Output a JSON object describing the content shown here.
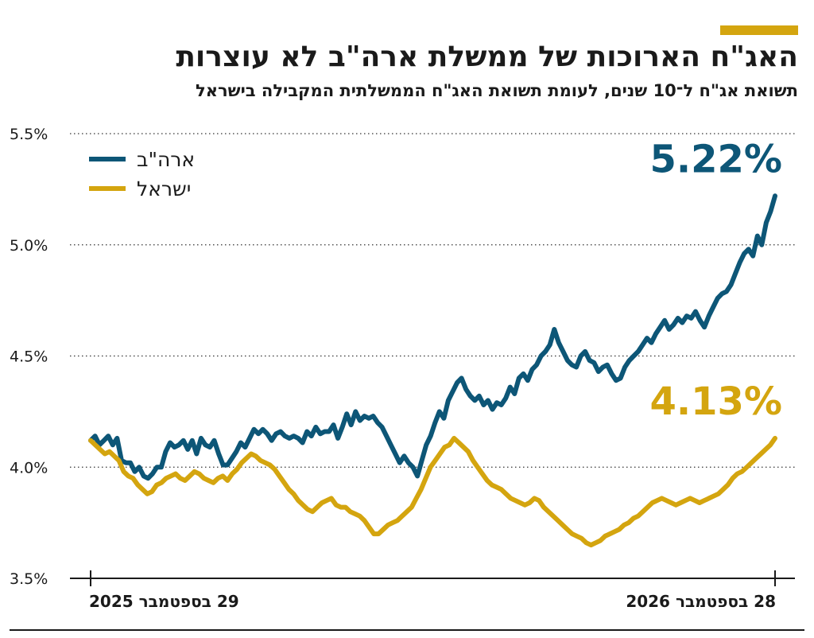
{
  "header": {
    "accent_color": "#d4a50f",
    "title": "האג\"ח הארוכות של ממשלת ארה\"ב לא עוצרות",
    "subtitle": "תשואת אג\"ח ל־10 שנים, לעומת תשואת האג\"ח הממשלתית המקבילה בישראל"
  },
  "chart_data": {
    "type": "line",
    "title": "האג\"ח הארוכות של ממשלת ארה\"ב לא עוצרות",
    "subtitle": "תשואת אג\"ח ל־10 שנים, לעומת תשואת האג\"ח הממשלתית המקבילה בישראל",
    "x_start_label": "29 בספטמבר 2025",
    "x_end_label": "28 בספטמבר 2026",
    "ylim": [
      3.5,
      5.5
    ],
    "yticks": [
      3.5,
      4.0,
      4.5,
      5.0,
      5.5
    ],
    "ytick_labels": [
      "3.5%",
      "4.0%",
      "4.5%",
      "5.0%",
      "5.5%"
    ],
    "grid": "horizontal dotted",
    "legend_position": "top-left",
    "series": [
      {
        "name": "ארה\"ב",
        "color": "#0d5677",
        "end_label": "5.22%",
        "values": [
          4.12,
          4.14,
          4.1,
          4.12,
          4.14,
          4.1,
          4.13,
          4.03,
          4.02,
          4.02,
          3.98,
          4.0,
          3.96,
          3.95,
          3.97,
          4.0,
          4.0,
          4.07,
          4.11,
          4.09,
          4.1,
          4.12,
          4.08,
          4.12,
          4.06,
          4.13,
          4.1,
          4.09,
          4.12,
          4.06,
          4.01,
          4.01,
          4.04,
          4.07,
          4.11,
          4.09,
          4.13,
          4.17,
          4.15,
          4.17,
          4.15,
          4.12,
          4.15,
          4.16,
          4.14,
          4.13,
          4.14,
          4.13,
          4.11,
          4.16,
          4.14,
          4.18,
          4.15,
          4.16,
          4.16,
          4.19,
          4.13,
          4.18,
          4.24,
          4.19,
          4.25,
          4.21,
          4.23,
          4.22,
          4.23,
          4.2,
          4.18,
          4.14,
          4.1,
          4.06,
          4.02,
          4.05,
          4.02,
          4.0,
          3.96,
          4.03,
          4.1,
          4.14,
          4.2,
          4.25,
          4.22,
          4.3,
          4.34,
          4.38,
          4.4,
          4.35,
          4.32,
          4.3,
          4.32,
          4.28,
          4.3,
          4.26,
          4.29,
          4.28,
          4.31,
          4.36,
          4.33,
          4.4,
          4.42,
          4.39,
          4.44,
          4.46,
          4.5,
          4.52,
          4.55,
          4.62,
          4.56,
          4.52,
          4.48,
          4.46,
          4.45,
          4.5,
          4.52,
          4.48,
          4.47,
          4.43,
          4.45,
          4.46,
          4.42,
          4.39,
          4.4,
          4.45,
          4.48,
          4.5,
          4.52,
          4.55,
          4.58,
          4.56,
          4.6,
          4.63,
          4.66,
          4.62,
          4.64,
          4.67,
          4.65,
          4.68,
          4.67,
          4.7,
          4.66,
          4.63,
          4.68,
          4.72,
          4.76,
          4.78,
          4.79,
          4.82,
          4.87,
          4.92,
          4.96,
          4.98,
          4.95,
          5.04,
          5.0,
          5.1,
          5.15,
          5.22
        ]
      },
      {
        "name": "ישראל",
        "color": "#d4a50f",
        "end_label": "4.13%",
        "values": [
          4.12,
          4.1,
          4.08,
          4.06,
          4.07,
          4.05,
          4.03,
          3.98,
          3.96,
          3.95,
          3.92,
          3.9,
          3.88,
          3.89,
          3.92,
          3.93,
          3.95,
          3.96,
          3.97,
          3.95,
          3.94,
          3.96,
          3.98,
          3.97,
          3.95,
          3.94,
          3.93,
          3.95,
          3.96,
          3.94,
          3.97,
          3.99,
          4.02,
          4.04,
          4.06,
          4.05,
          4.03,
          4.02,
          4.01,
          3.99,
          3.96,
          3.93,
          3.9,
          3.88,
          3.85,
          3.83,
          3.81,
          3.8,
          3.82,
          3.84,
          3.85,
          3.86,
          3.83,
          3.82,
          3.82,
          3.8,
          3.79,
          3.78,
          3.76,
          3.73,
          3.7,
          3.7,
          3.72,
          3.74,
          3.75,
          3.76,
          3.78,
          3.8,
          3.82,
          3.86,
          3.9,
          3.95,
          4.0,
          4.03,
          4.06,
          4.09,
          4.1,
          4.13,
          4.11,
          4.09,
          4.07,
          4.03,
          4.0,
          3.97,
          3.94,
          3.92,
          3.91,
          3.9,
          3.88,
          3.86,
          3.85,
          3.84,
          3.83,
          3.84,
          3.86,
          3.85,
          3.82,
          3.8,
          3.78,
          3.76,
          3.74,
          3.72,
          3.7,
          3.69,
          3.68,
          3.66,
          3.65,
          3.66,
          3.67,
          3.69,
          3.7,
          3.71,
          3.72,
          3.74,
          3.75,
          3.77,
          3.78,
          3.8,
          3.82,
          3.84,
          3.85,
          3.86,
          3.85,
          3.84,
          3.83,
          3.84,
          3.85,
          3.86,
          3.85,
          3.84,
          3.85,
          3.86,
          3.87,
          3.88,
          3.9,
          3.92,
          3.95,
          3.97,
          3.98,
          4.0,
          4.02,
          4.04,
          4.06,
          4.08,
          4.1,
          4.13
        ]
      }
    ]
  }
}
